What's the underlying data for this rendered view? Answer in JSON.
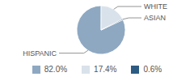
{
  "chart_data": {
    "type": "pie",
    "categories": [
      "HISPANIC",
      "WHITE",
      "ASIAN"
    ],
    "values": [
      82.0,
      17.4,
      0.6
    ],
    "value_labels": [
      "82.0%",
      "17.4%",
      "0.6%"
    ],
    "colors": [
      "#8ea8c1",
      "#d9e2ea",
      "#2e5b82"
    ]
  }
}
